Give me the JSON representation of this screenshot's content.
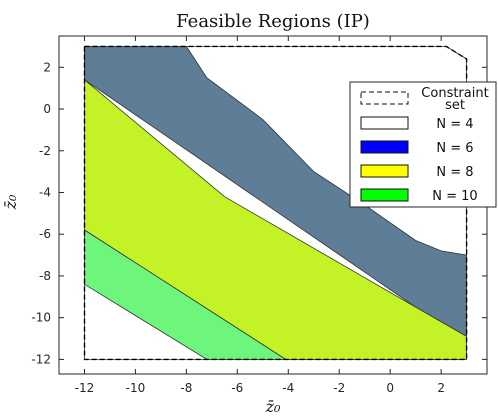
{
  "chart_data": {
    "type": "area",
    "title": "Feasible Regions (IP)",
    "xlabel": "z̄₀",
    "ylabel": "z̄₀",
    "xlim": [
      -13,
      3.8
    ],
    "ylim": [
      -12.7,
      3.5
    ],
    "xticks": [
      -12,
      -10,
      -8,
      -6,
      -4,
      -2,
      0,
      2
    ],
    "yticks": [
      2,
      0,
      -2,
      -4,
      -6,
      -8,
      -10,
      -12
    ],
    "xtick_labels": [
      "-12",
      "-10",
      "-8",
      "-6",
      "-4",
      "-2",
      "0",
      "2"
    ],
    "ytick_labels": [
      "2",
      "0",
      "-2",
      "-4",
      "-6",
      "-8",
      "-10",
      "-12"
    ],
    "grid": false,
    "legend_position": "top-right",
    "series": [
      {
        "name": "Constraint set",
        "style": "dashed-outline",
        "color": "#000000",
        "polygon": [
          [
            -12,
            3
          ],
          [
            2.2,
            3
          ],
          [
            3,
            2.4
          ],
          [
            3,
            -12
          ],
          [
            -12,
            -12
          ]
        ]
      },
      {
        "name": "N = 4",
        "color": "#ffffff",
        "polygon": [
          [
            -12,
            3
          ],
          [
            2.2,
            3
          ],
          [
            3,
            2.4
          ],
          [
            3,
            -12
          ],
          [
            -12,
            -12
          ]
        ]
      },
      {
        "name": "N = 6",
        "color": "#0000ff",
        "display_color": "#5e7d97",
        "polygon": [
          [
            -12,
            3
          ],
          [
            -8,
            3
          ],
          [
            -7.2,
            1.5
          ],
          [
            -5,
            -0.5
          ],
          [
            -3,
            -3
          ],
          [
            -1,
            -4.6
          ],
          [
            1,
            -6.3
          ],
          [
            2,
            -6.8
          ],
          [
            3,
            -7
          ],
          [
            3,
            -10.9
          ],
          [
            1,
            -9.5
          ],
          [
            -12,
            1.4
          ]
        ]
      },
      {
        "name": "N = 8",
        "color": "#ffff00",
        "display_color": "#c3f227",
        "polygon": [
          [
            -12,
            1.4
          ],
          [
            -6.5,
            -4.2
          ],
          [
            1,
            -9.5
          ],
          [
            3,
            -10.9
          ],
          [
            3,
            -12
          ],
          [
            -4.1,
            -12
          ],
          [
            -12,
            -5.8
          ]
        ]
      },
      {
        "name": "N = 10",
        "color": "#00ff00",
        "display_color": "#6ef57c",
        "polygon": [
          [
            -12,
            -5.8
          ],
          [
            -4.1,
            -12
          ],
          [
            -7.2,
            -12
          ],
          [
            -12,
            -8.4
          ]
        ]
      }
    ]
  }
}
